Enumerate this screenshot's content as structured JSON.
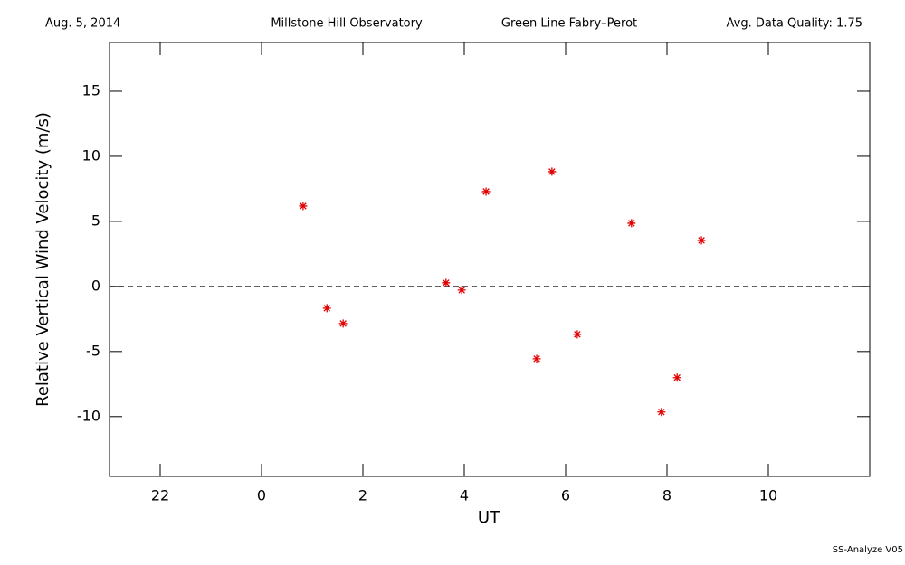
{
  "chart_data": {
    "type": "scatter",
    "header": [
      "Aug. 5, 2014",
      "Millstone Hill Observatory",
      "Green Line Fabry–Perot",
      "Avg. Data Quality: 1.75"
    ],
    "footer": "SS-Analyze V05",
    "xlabel": "UT",
    "ylabel": "Relative Vertical Wind Velocity (m/s)",
    "xlim": [
      21,
      36
    ],
    "ylim": [
      -14.6,
      18.75
    ],
    "xticks": [
      {
        "value": 22,
        "label": "22"
      },
      {
        "value": 24,
        "label": "0"
      },
      {
        "value": 26,
        "label": "2"
      },
      {
        "value": 28,
        "label": "4"
      },
      {
        "value": 30,
        "label": "6"
      },
      {
        "value": 32,
        "label": "8"
      },
      {
        "value": 34,
        "label": "10"
      }
    ],
    "yticks": [
      -10,
      -5,
      0,
      5,
      10,
      15
    ],
    "hline": 0,
    "series": [
      {
        "color": "#e00000",
        "x": [
          24.82,
          25.29,
          25.61,
          27.64,
          27.95,
          28.43,
          29.43,
          29.73,
          30.23,
          31.3,
          31.89,
          32.2,
          32.68
        ],
        "values": [
          6.18,
          -1.67,
          -2.85,
          0.28,
          -0.28,
          7.29,
          -5.56,
          8.82,
          -3.68,
          4.86,
          -9.65,
          -7.01,
          3.54
        ]
      }
    ]
  }
}
